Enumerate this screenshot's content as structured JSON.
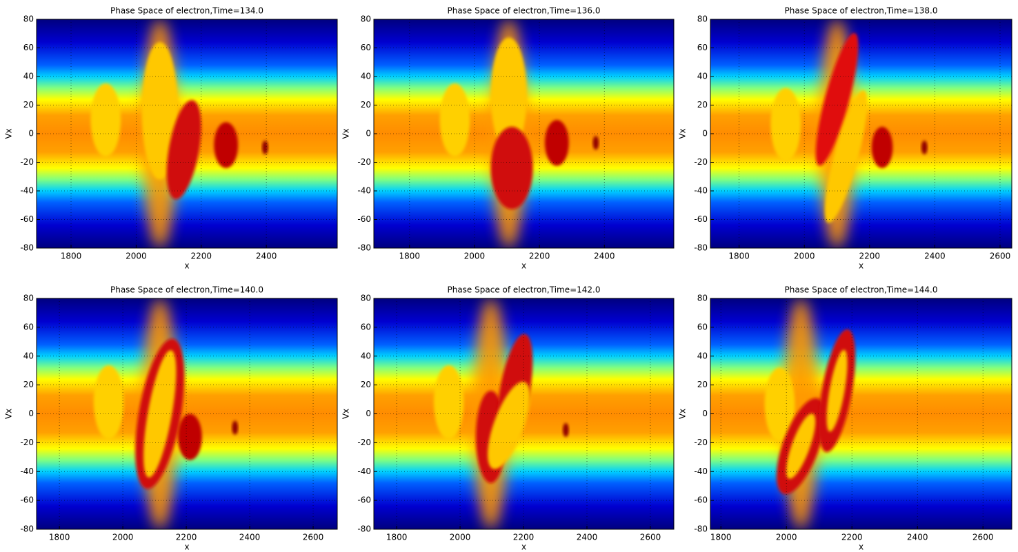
{
  "chart_data": [
    {
      "type": "heatmap",
      "title": "Phase Space of electron,Time=134.0",
      "x_label": "x",
      "y_label": "Vx",
      "xlim": [
        1694,
        2618
      ],
      "ylim": [
        -80,
        80
      ],
      "xticks": [
        1800,
        2000,
        2200,
        2400
      ],
      "yticks": [
        -80,
        -60,
        -40,
        -20,
        0,
        20,
        40,
        60,
        80
      ],
      "grid": true
    },
    {
      "type": "heatmap",
      "title": "Phase Space of electron,Time=136.0",
      "x_label": "x",
      "y_label": "Vx",
      "xlim": [
        1690,
        2614
      ],
      "ylim": [
        -80,
        80
      ],
      "xticks": [
        1800,
        2000,
        2200,
        2400
      ],
      "yticks": [
        -80,
        -60,
        -40,
        -20,
        0,
        20,
        40,
        60,
        80
      ],
      "grid": true
    },
    {
      "type": "heatmap",
      "title": "Phase Space of electron,Time=138.0",
      "x_label": "x",
      "y_label": "Vx",
      "xlim": [
        1712,
        2636
      ],
      "ylim": [
        -80,
        80
      ],
      "xticks": [
        1800,
        2000,
        2200,
        2400,
        2600
      ],
      "yticks": [
        -80,
        -60,
        -40,
        -20,
        0,
        20,
        40,
        60,
        80
      ],
      "grid": true
    },
    {
      "type": "heatmap",
      "title": "Phase Space of electron,Time=140.0",
      "x_label": "x",
      "y_label": "Vx",
      "xlim": [
        1728,
        2676
      ],
      "ylim": [
        -80,
        80
      ],
      "xticks": [
        1800,
        2000,
        2200,
        2400,
        2600
      ],
      "yticks": [
        -80,
        -60,
        -40,
        -20,
        0,
        20,
        40,
        60,
        80
      ],
      "grid": true
    },
    {
      "type": "heatmap",
      "title": "Phase Space of electron,Time=142.0",
      "x_label": "x",
      "y_label": "Vx",
      "xlim": [
        1728,
        2674
      ],
      "ylim": [
        -80,
        80
      ],
      "xticks": [
        1800,
        2000,
        2200,
        2400,
        2600
      ],
      "yticks": [
        -80,
        -60,
        -40,
        -20,
        0,
        20,
        40,
        60,
        80
      ],
      "grid": true
    },
    {
      "type": "heatmap",
      "title": "Phase Space of electron,Time=144.0",
      "x_label": "x",
      "y_label": "Vx",
      "xlim": [
        1768,
        2688
      ],
      "ylim": [
        -80,
        80
      ],
      "xticks": [
        1800,
        2000,
        2200,
        2400,
        2600
      ],
      "yticks": [
        -80,
        -60,
        -40,
        -20,
        0,
        20,
        40,
        60,
        80
      ],
      "grid": true
    }
  ]
}
